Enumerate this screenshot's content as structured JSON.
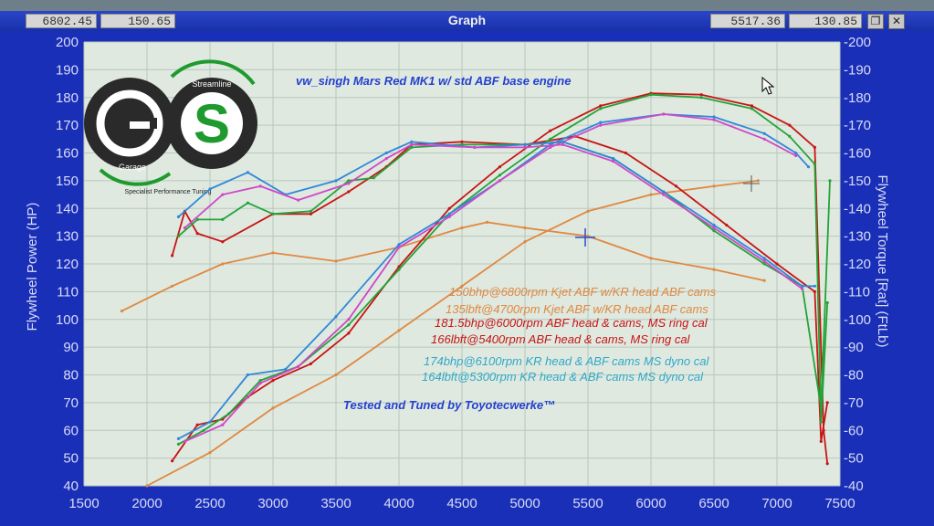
{
  "window": {
    "title": "Graph",
    "readouts_left": [
      "6802.45",
      "150.65"
    ],
    "readouts_right": [
      "5517.36",
      "130.85"
    ],
    "restore_icon": "restore-icon",
    "close_icon": "close-icon"
  },
  "colors": {
    "plot_bg": "#dfe9e0",
    "frame": "#1a2fb8",
    "axis_text": "#d8dcf5",
    "orange": "#e08840",
    "red": "#c81414",
    "green": "#23a338",
    "blue": "#2f88d8",
    "pink": "#d048c8",
    "title_blue": "#2440d0"
  },
  "chart_data": {
    "type": "line",
    "title": "vw_singh Mars Red MK1 w/ std ABF base engine",
    "xlabel": "",
    "ylabel_left": "Flywheel Power (HP)",
    "ylabel_right": "Flywheel Torque [Rat] (FtLb)",
    "xlim": [
      1500,
      7500
    ],
    "ylim_left": [
      40,
      200
    ],
    "ylim_right": [
      40,
      200
    ],
    "x_ticks": [
      1500,
      2000,
      2500,
      3000,
      3500,
      4000,
      4500,
      5000,
      5500,
      6000,
      6500,
      7000,
      7500
    ],
    "y_ticks": [
      40,
      50,
      60,
      70,
      80,
      90,
      100,
      110,
      120,
      130,
      140,
      150,
      160,
      170,
      180,
      190,
      200
    ],
    "grid": true,
    "logo_text": {
      "left": "Garage",
      "right": "Streamline",
      "caption": "Specialist Performance Tuning"
    },
    "annotations": [
      {
        "text": "150bhp@6800rpm Kjet ABF w/KR head ABF cams",
        "color": "orange"
      },
      {
        "text": "135lbft@4700rpm Kjet ABF w/KR head ABF cams",
        "color": "orange"
      },
      {
        "text": "181.5bhp@6000rpm ABF head & cams, MS ring cal",
        "color": "red"
      },
      {
        "text": "166lbft@5400rpm ABF head & cams, MS ring cal",
        "color": "red"
      },
      {
        "text": "174bhp@6100rpm KR head & ABF cams MS dyno cal",
        "color": "blue"
      },
      {
        "text": "164lbft@5300rpm KR head & ABF cams MS dyno cal",
        "color": "blue"
      },
      {
        "text": "Tested and Tuned by Toyotecwerke™",
        "color": "title_blue"
      }
    ],
    "series": [
      {
        "color": "orange",
        "x": [
          2000,
          2500,
          3000,
          3500,
          4000,
          4500,
          5000,
          5500,
          6000,
          6500,
          6850
        ],
        "y": [
          40,
          52,
          68,
          80,
          96,
          112,
          128,
          139,
          145,
          148,
          150
        ]
      },
      {
        "color": "orange",
        "x": [
          1800,
          2200,
          2600,
          3000,
          3500,
          4000,
          4500,
          4700,
          5000,
          5500,
          6000,
          6500,
          6900
        ],
        "y": [
          103,
          112,
          120,
          124,
          121,
          126,
          133,
          135,
          133,
          130,
          122,
          118,
          114
        ]
      },
      {
        "color": "red",
        "x": [
          2200,
          2400,
          2600,
          2800,
          3000,
          3300,
          3600,
          4000,
          4400,
          4800,
          5200,
          5600,
          6000,
          6400,
          6800,
          7100,
          7300,
          7370,
          7400
        ],
        "y": [
          49,
          62,
          64,
          72,
          78,
          84,
          95,
          119,
          140,
          155,
          168,
          177,
          181.5,
          181,
          177,
          170,
          162,
          60,
          48
        ]
      },
      {
        "color": "red",
        "x": [
          2200,
          2300,
          2400,
          2600,
          3000,
          3300,
          3600,
          3900,
          4100,
          4500,
          5000,
          5400,
          5800,
          6200,
          6600,
          7000,
          7300,
          7350,
          7400
        ],
        "y": [
          123,
          139,
          131,
          128,
          138,
          138,
          146,
          155,
          163,
          164,
          163,
          166,
          160,
          148,
          134,
          120,
          110,
          56,
          70
        ]
      },
      {
        "color": "green",
        "x": [
          2250,
          2450,
          2650,
          2900,
          3200,
          3600,
          4000,
          4400,
          4800,
          5200,
          5600,
          6000,
          6400,
          6800,
          7100,
          7300,
          7350,
          7400
        ],
        "y": [
          55,
          60,
          66,
          78,
          83,
          98,
          118,
          138,
          152,
          165,
          176,
          181,
          180,
          176,
          166,
          156,
          63,
          106
        ]
      },
      {
        "color": "green",
        "x": [
          2250,
          2400,
          2600,
          2800,
          3000,
          3300,
          3600,
          3800,
          4100,
          4500,
          5000,
          5300,
          5700,
          6100,
          6500,
          6900,
          7200,
          7350,
          7420
        ],
        "y": [
          130,
          136,
          136,
          142,
          138,
          139,
          150,
          151,
          162,
          163,
          163,
          164,
          158,
          146,
          132,
          120,
          112,
          68,
          150
        ]
      },
      {
        "color": "blue",
        "x": [
          2250,
          2500,
          2800,
          3100,
          3500,
          4000,
          4400,
          4800,
          5200,
          5600,
          6100,
          6500,
          6900,
          7150,
          7250
        ],
        "y": [
          57,
          63,
          80,
          82,
          101,
          127,
          138,
          150,
          163,
          171,
          174,
          173,
          167,
          160,
          155
        ]
      },
      {
        "color": "pink",
        "x": [
          2300,
          2600,
          2900,
          3200,
          3600,
          4000,
          4400,
          4800,
          5200,
          5600,
          6100,
          6500,
          6900,
          7150
        ],
        "y": [
          56,
          62,
          77,
          83,
          100,
          126,
          137,
          150,
          162,
          170,
          174,
          172,
          165,
          159
        ]
      },
      {
        "color": "blue",
        "x": [
          2250,
          2500,
          2800,
          3100,
          3500,
          3900,
          4100,
          4600,
          5000,
          5300,
          5700,
          6100,
          6500,
          6900,
          7200,
          7300
        ],
        "y": [
          137,
          147,
          153,
          145,
          150,
          160,
          164,
          162,
          163,
          164,
          158,
          146,
          134,
          122,
          112,
          112
        ]
      },
      {
        "color": "pink",
        "x": [
          2300,
          2600,
          2900,
          3200,
          3600,
          3900,
          4100,
          4600,
          5000,
          5300,
          5700,
          6100,
          6500,
          6900,
          7200
        ],
        "y": [
          133,
          145,
          148,
          143,
          149,
          158,
          163,
          162,
          162,
          163,
          157,
          145,
          133,
          121,
          111
        ]
      }
    ]
  }
}
